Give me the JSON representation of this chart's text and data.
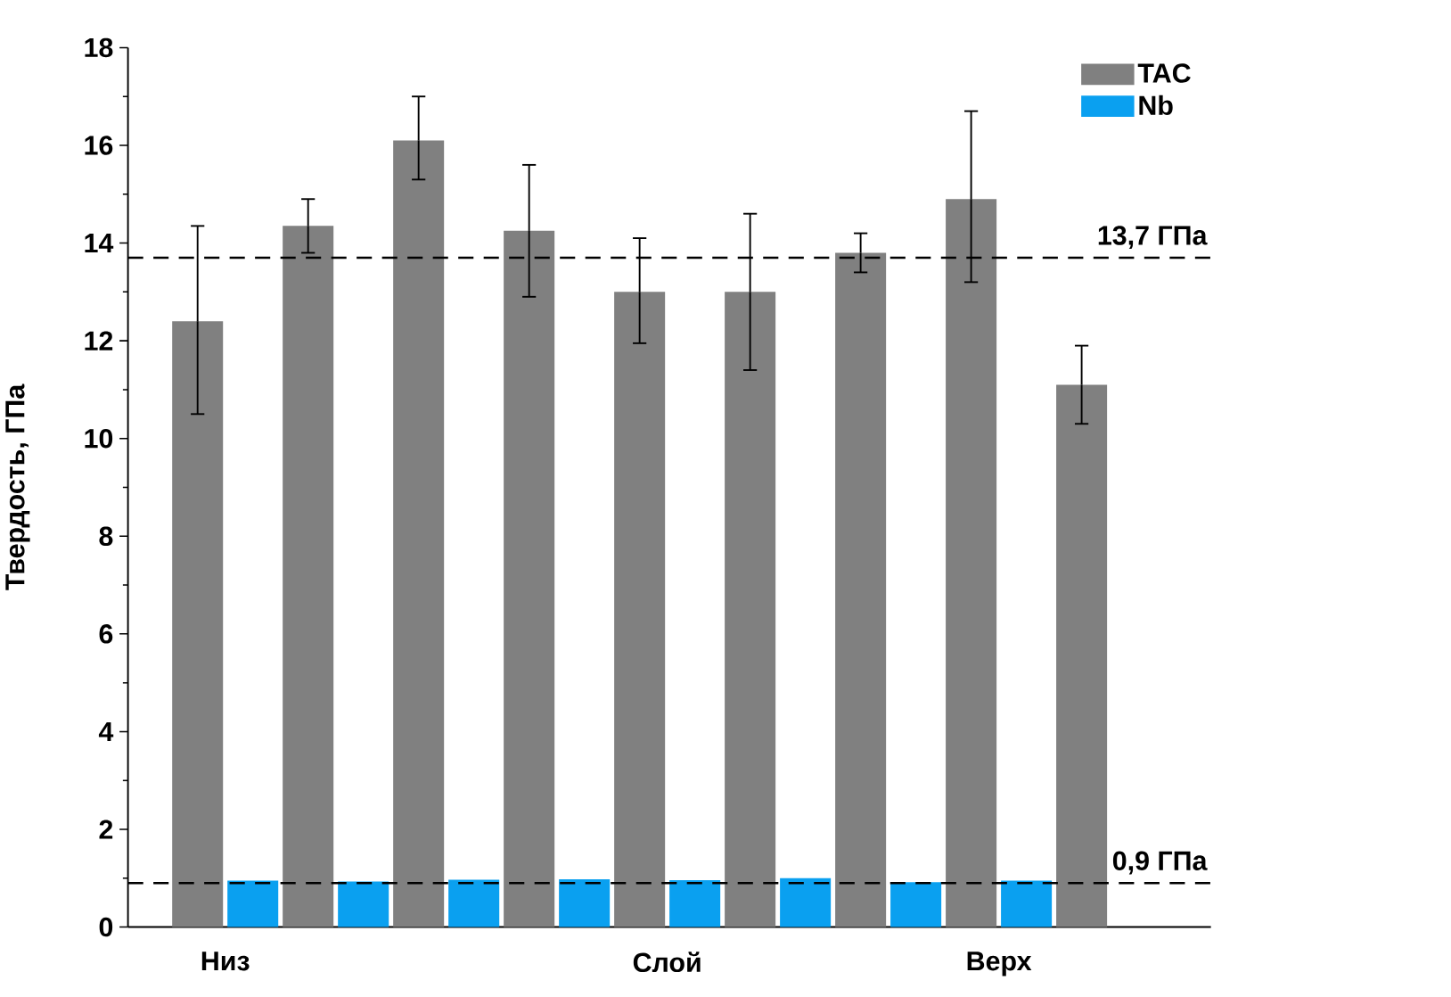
{
  "chart_data": {
    "type": "bar",
    "ylabel": "Твердость, ГПа",
    "categories": [
      "Низ",
      null,
      null,
      null,
      "Слой",
      null,
      null,
      "Верх",
      null
    ],
    "series": [
      {
        "name": "TAC",
        "color": "#808080",
        "values": [
          12.4,
          14.35,
          16.1,
          14.25,
          13.0,
          13.0,
          13.8,
          14.9,
          11.1
        ],
        "errors": [
          [
            10.5,
            14.35
          ],
          [
            13.8,
            14.9
          ],
          [
            15.3,
            17.0
          ],
          [
            12.9,
            15.6
          ],
          [
            11.95,
            14.1
          ],
          [
            11.4,
            14.6
          ],
          [
            13.4,
            14.2
          ],
          [
            13.2,
            16.7
          ],
          [
            10.3,
            11.9
          ]
        ]
      },
      {
        "name": "Nb",
        "color": "#0aa0f0",
        "values": [
          0.95,
          0.93,
          0.97,
          0.98,
          0.96,
          1.0,
          0.92,
          0.95,
          null
        ]
      }
    ],
    "ylim": [
      0,
      18
    ],
    "yticks": [
      0,
      2,
      4,
      6,
      8,
      10,
      12,
      14,
      16,
      18
    ],
    "ref_lines": [
      {
        "axis": "y",
        "value": 13.7,
        "label": "13,7 ГПа",
        "line_style": "dashed"
      },
      {
        "axis": "y",
        "value": 0.9,
        "label": "0,9 ГПа",
        "line_style": "dashed"
      }
    ],
    "legend": "top right"
  }
}
